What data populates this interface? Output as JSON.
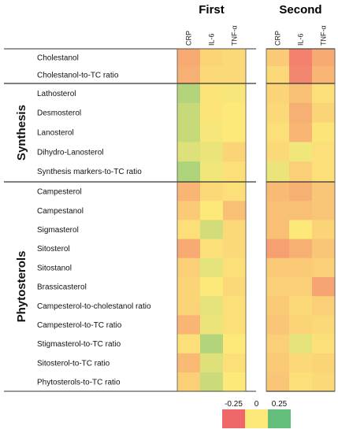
{
  "chart_data": {
    "type": "heatmap",
    "panels": [
      {
        "title": "First",
        "columns": [
          "CRP",
          "IL-6",
          "TNF-α"
        ]
      },
      {
        "title": "Second",
        "columns": [
          "CRP",
          "IL-6",
          "TNF-α"
        ]
      }
    ],
    "groups": [
      {
        "name": "",
        "rows": [
          "Cholestanol",
          "Cholestanol-to-TC ratio"
        ]
      },
      {
        "name": "Synthesis",
        "rows": [
          "Lathosterol",
          "Desmosterol",
          "Lanosterol",
          "Dihydro-Lanosterol",
          "Synthesis markers-to-TC ratio"
        ]
      },
      {
        "name": "Phytosterols",
        "rows": [
          "Campesterol",
          "Campestanol",
          "Sigmasterol",
          "Sitosterol",
          "Sitostanol",
          "Brassicasterol",
          "Campesterol-to-cholestanol ratio",
          "Campesterol-to-TC ratio",
          "Stigmasterol-to-TC ratio",
          "Sitosterol-to-TC ratio",
          "Phytosterols-to-TC ratio"
        ]
      }
    ],
    "values": {
      "First": [
        [
          -0.12,
          -0.04,
          -0.03
        ],
        [
          -0.11,
          -0.03,
          -0.03
        ],
        [
          0.12,
          -0.01,
          0.01
        ],
        [
          0.09,
          -0.01,
          0.0
        ],
        [
          0.09,
          0.01,
          0.0
        ],
        [
          0.05,
          0.03,
          -0.04
        ],
        [
          0.13,
          0.02,
          -0.02
        ],
        [
          -0.1,
          -0.03,
          -0.02
        ],
        [
          -0.06,
          0.0,
          -0.08
        ],
        [
          -0.02,
          0.07,
          -0.03
        ],
        [
          -0.12,
          -0.02,
          -0.03
        ],
        [
          -0.05,
          0.04,
          -0.02
        ],
        [
          -0.04,
          0.0,
          -0.03
        ],
        [
          -0.04,
          0.04,
          -0.02
        ],
        [
          -0.1,
          0.03,
          -0.02
        ],
        [
          -0.02,
          0.12,
          0.0
        ],
        [
          -0.09,
          0.05,
          -0.02
        ],
        [
          -0.05,
          0.08,
          0.0
        ]
      ],
      "Second": [
        [
          -0.06,
          -0.2,
          -0.12
        ],
        [
          -0.03,
          -0.19,
          -0.1
        ],
        [
          -0.04,
          -0.08,
          -0.02
        ],
        [
          -0.03,
          -0.11,
          -0.04
        ],
        [
          -0.02,
          -0.1,
          -0.01
        ],
        [
          -0.03,
          0.02,
          -0.02
        ],
        [
          0.03,
          -0.05,
          -0.02
        ],
        [
          -0.09,
          -0.11,
          -0.07
        ],
        [
          -0.08,
          -0.08,
          -0.07
        ],
        [
          -0.08,
          0.0,
          -0.04
        ],
        [
          -0.14,
          -0.11,
          -0.07
        ],
        [
          -0.06,
          -0.06,
          -0.05
        ],
        [
          -0.05,
          -0.05,
          -0.13
        ],
        [
          -0.06,
          -0.03,
          -0.05
        ],
        [
          -0.07,
          -0.04,
          -0.03
        ],
        [
          -0.05,
          0.04,
          -0.02
        ],
        [
          -0.06,
          -0.03,
          -0.04
        ],
        [
          -0.07,
          -0.02,
          -0.03
        ]
      ]
    },
    "color_scale": {
      "min": -0.25,
      "mid": 0,
      "max": 0.25,
      "colors": [
        "#f0676a",
        "#fde97a",
        "#63be7b"
      ],
      "labels": [
        "-0.25",
        "0",
        "0.25"
      ]
    },
    "title": "",
    "xlabel": "",
    "ylabel": ""
  }
}
